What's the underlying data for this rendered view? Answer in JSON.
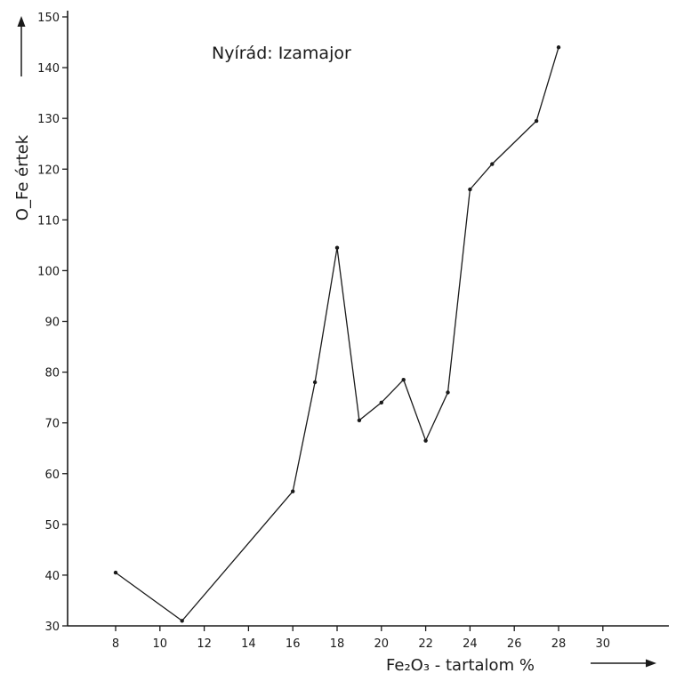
{
  "chart_data": {
    "type": "line",
    "title": "Nyírád: Izamajor",
    "xlabel": "Fe₂O₃ - tartalom %",
    "ylabel": "O_Fe értek",
    "xticks": [
      8,
      10,
      12,
      14,
      16,
      18,
      20,
      22,
      24,
      26,
      28,
      30
    ],
    "yticks": [
      30,
      40,
      50,
      60,
      70,
      80,
      90,
      100,
      110,
      120,
      130,
      140,
      150
    ],
    "series": [
      {
        "x": [
          8,
          11,
          16,
          17,
          18,
          19,
          20,
          21,
          22,
          23,
          24,
          25,
          27,
          28
        ],
        "y": [
          40.5,
          31,
          56.5,
          78,
          104.5,
          70.5,
          74,
          78.5,
          66.5,
          76,
          116,
          121,
          129.5,
          144
        ],
        "color": "#1a1a1a"
      }
    ],
    "colors": {
      "ink": "#1a1a1a",
      "background": "#ffffff"
    }
  }
}
